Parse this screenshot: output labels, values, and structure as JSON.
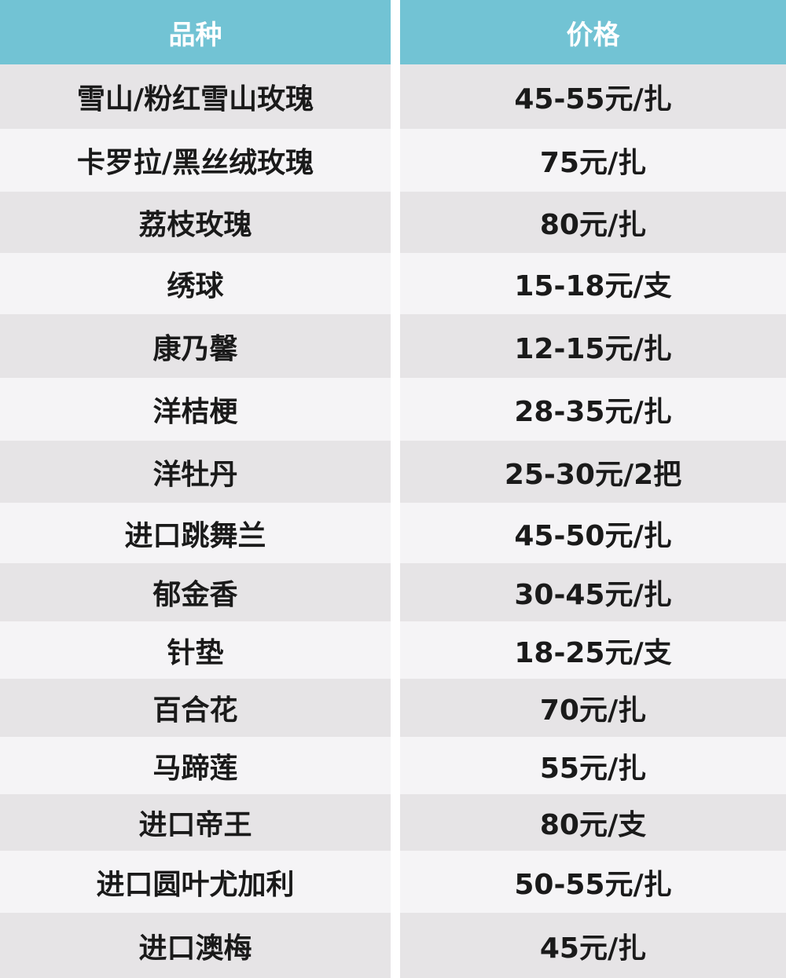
{
  "colors": {
    "header": "#72c3d4",
    "row_dark": "#e6e4e6",
    "row_light": "#f5f4f6"
  },
  "headers": [
    "品种",
    "价格"
  ],
  "rows": [
    [
      "雪山/粉红雪山玫瑰",
      "45-55元/扎"
    ],
    [
      "卡罗拉/黑丝绒玫瑰",
      "75元/扎"
    ],
    [
      "荔枝玫瑰",
      "80元/扎"
    ],
    [
      "绣球",
      "15-18元/支"
    ],
    [
      "康乃馨",
      "12-15元/扎"
    ],
    [
      "洋桔梗",
      "28-35元/扎"
    ],
    [
      "洋牡丹",
      "25-30元/2把"
    ],
    [
      "进口跳舞兰",
      "45-50元/扎"
    ],
    [
      "郁金香",
      "30-45元/扎"
    ],
    [
      "针垫",
      "18-25元/支"
    ],
    [
      "百合花",
      "70元/扎"
    ],
    [
      "马蹄莲",
      "55元/扎"
    ],
    [
      "进口帝王",
      "80元/支"
    ],
    [
      "进口圆叶尤加利",
      "50-55元/扎"
    ],
    [
      "进口澳梅",
      "45元/扎"
    ]
  ]
}
